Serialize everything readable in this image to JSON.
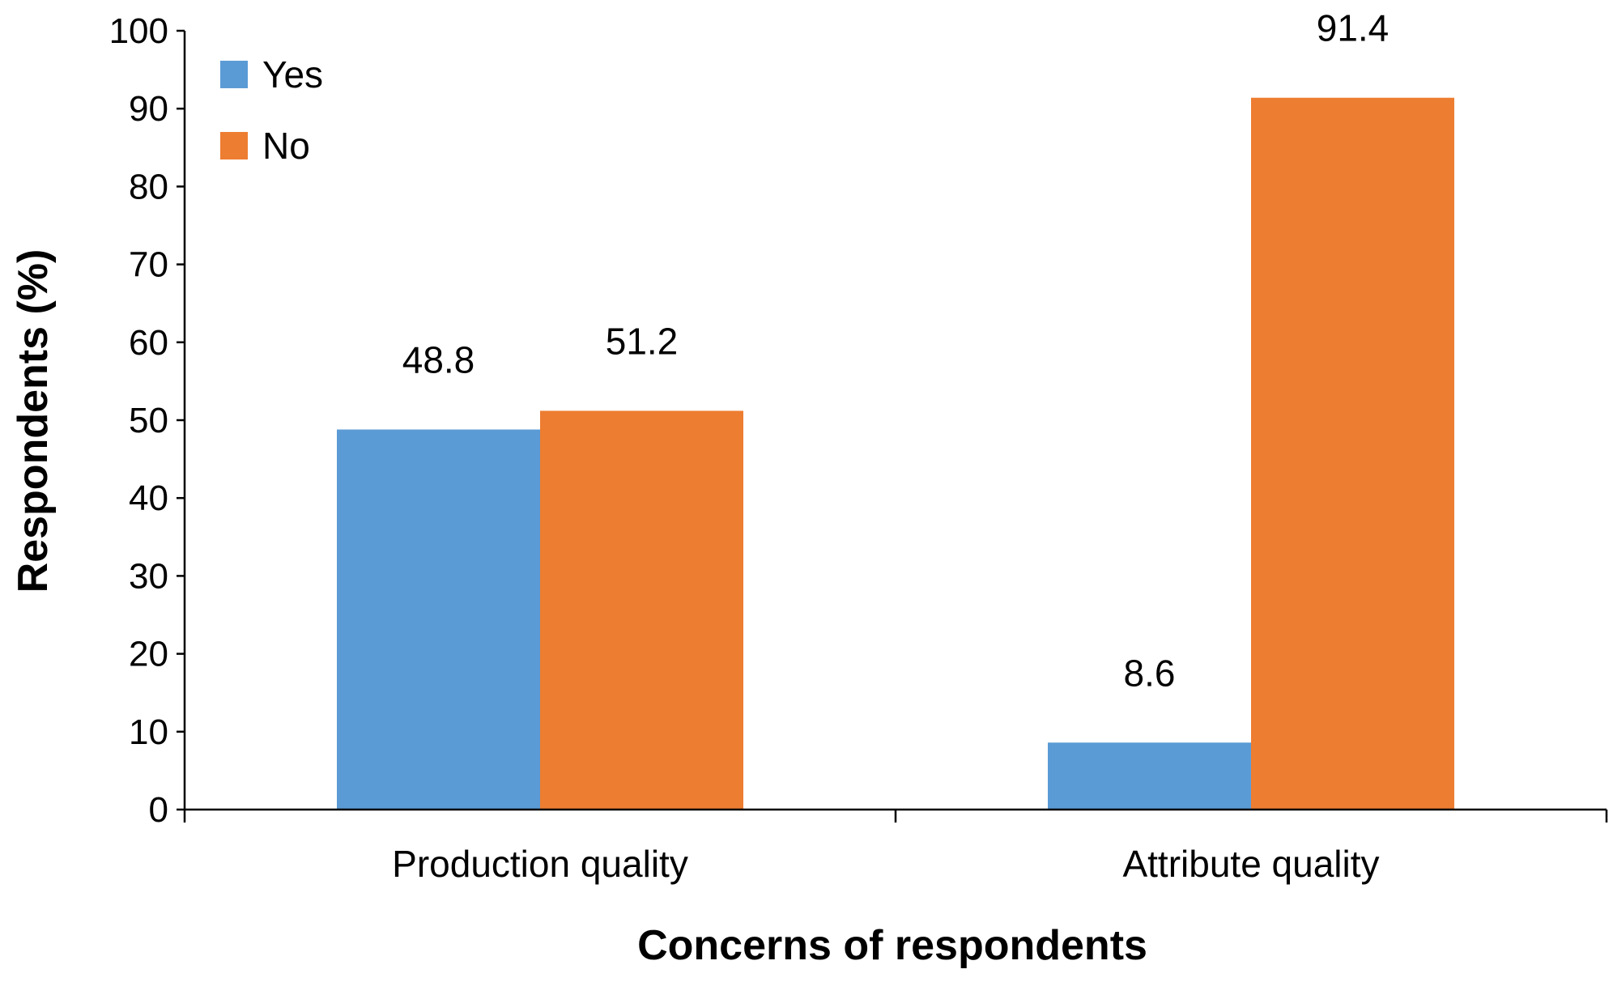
{
  "chart_data": {
    "type": "bar",
    "categories": [
      "Production quality",
      "Attribute quality"
    ],
    "series": [
      {
        "name": "Yes",
        "values": [
          48.8,
          8.6
        ],
        "labels": [
          "48.8",
          "8.6"
        ],
        "color": "#5B9BD5"
      },
      {
        "name": "No",
        "values": [
          51.2,
          91.4
        ],
        "labels": [
          "51.2",
          "91.4"
        ],
        "color": "#ED7D31"
      }
    ],
    "xlabel": "Concerns of respondents",
    "ylabel": "Respondents (%)",
    "ylim": [
      0,
      100
    ],
    "yticks": [
      "0",
      "10",
      "20",
      "30",
      "40",
      "50",
      "60",
      "70",
      "80",
      "90",
      "100"
    ],
    "grid": false,
    "legend_position": "top-left"
  }
}
